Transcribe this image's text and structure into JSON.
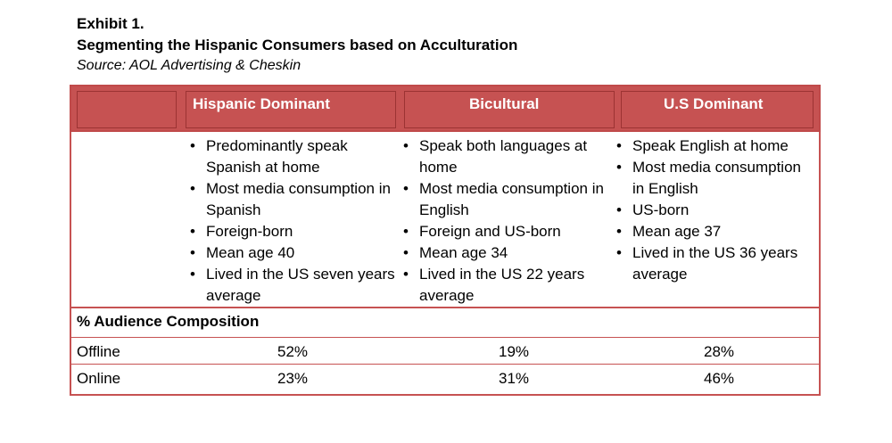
{
  "exhibit": "Exhibit 1.",
  "title": "Segmenting the Hispanic Consumers based on Acculturation",
  "source": "Source: AOL Advertising & Cheskin",
  "columns": [
    "Hispanic Dominant",
    "Bicultural",
    "U.S Dominant"
  ],
  "segments": [
    {
      "bullets": [
        "Predominantly speak Spanish at home",
        "Most media consumption in Spanish",
        "Foreign-born",
        "Mean age 40",
        "Lived in the US seven years average"
      ]
    },
    {
      "bullets": [
        "Speak both languages at home",
        "Most media consumption in English",
        "Foreign and US-born",
        "Mean age 34",
        "Lived in the US 22 years average"
      ]
    },
    {
      "bullets": [
        "Speak English at home",
        "Most media consumption in English",
        "US-born",
        "Mean age 37",
        "Lived in the US 36 years average"
      ]
    }
  ],
  "audience": {
    "label": "% Audience Composition",
    "rows": [
      {
        "label": "Offline",
        "values": [
          "52%",
          "19%",
          "28%"
        ]
      },
      {
        "label": "Online",
        "values": [
          "23%",
          "31%",
          "46%"
        ]
      }
    ]
  },
  "colors": {
    "header_bg": "#c65252",
    "grid": "#c65252",
    "header_text": "#ffffff"
  }
}
